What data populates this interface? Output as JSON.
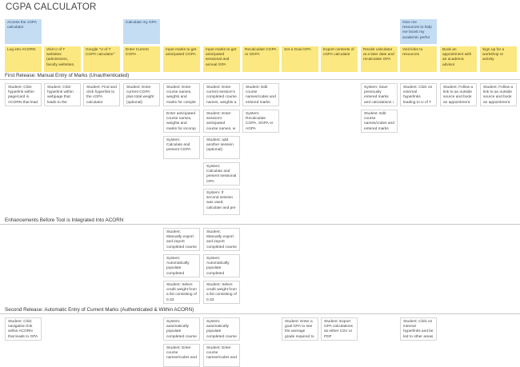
{
  "title": "CGPA CALCULATOR",
  "goals": {
    "access": "Access the cGPA calculator",
    "calculate": "Calculate my GPA",
    "resources": "Give me resources to help me boost my academic perfor"
  },
  "activities": [
    "Log into ACORN",
    "Visit U of T websites (admissions, faculty websites,",
    "Google \"U of T CGPA calculator\"",
    "Enter Current CGPA",
    "Input marks to get anticipated CGPA",
    "Input marks to get anticipated sessional and annual GPA",
    "Recalculate CGPA or SGPA",
    "Set a Goal GPA",
    "Export contents of cGPA calculator",
    "Revisit calculator at a later date and recalculate GPA",
    "Visit links to resources",
    "Book an appointment with an academic advisor",
    "Sign up for a workshop or activity"
  ],
  "sections": {
    "first": "First Release: Manual Entry of Marks (Unauthenticated)",
    "enhancements": "Enhancements Before Tool is Integrated Into ACORN",
    "second": "Second Release: Automatic Entry of Current Marks (Authenticated & Within ACORN)"
  },
  "release1": {
    "c0": [
      "Student: Click hyperlink within page/card in ACORN that lead"
    ],
    "c1": [
      "Student: Click hyperlink within webpage that leads to the cGPA"
    ],
    "c2": [
      "Student: Find and click hyperlink to the cGPA calculator"
    ],
    "c3": [
      "Student: Enter current CGPA plus total weight (optional)"
    ],
    "c4": [
      "Student: Enter course names, weights and marks for comple",
      "Enter anticipated course names, weights and marks for incomp",
      "System: Calculate and present CGPA"
    ],
    "c5": [
      "Student: Enter current session's completed course names, weights a",
      "Student: Enter session's anticipated course names, w",
      "Student: add another session (optional)",
      "System: Calculate and present sessional GPA",
      "System: If second session was used, calculate and pre"
    ],
    "c6": [
      "Student: Edit course names/codes and entered marks",
      "System: Recalculate CGPA, SGPA or AGPA"
    ],
    "c8": [
      "System: Save previously entered marks and calculations i",
      "Student: Edit course names/codes and entered marks"
    ],
    "c9": [
      "Student: Click on external hyperlinks leading to U of T"
    ],
    "c10": [
      "Student: Follow a link to an outside source and book an appointment"
    ],
    "c11": [
      "Student: Follow a link to an outside source and book an appointment"
    ]
  },
  "enhance": {
    "c4": [
      "Student: Manually export and import completed course",
      "System: Automatically populate completed grades",
      "Student: Select credit weight from a list consisting of 0.33"
    ],
    "c5": [
      "Student: Manually export and import completed course",
      "System: Automatically populate completed grades",
      "Student: Select credit weight from a list consisting of 0.33"
    ]
  },
  "release2": {
    "c0": [
      "Student: Click navigation link within ACORN that leads to GPA"
    ],
    "c4": [
      "System: automatically populate completed course",
      "Student: Enter course names/codes and"
    ],
    "c5": [
      "System: automatically populate completed course",
      "Student: Enter course names/codes and"
    ],
    "c7": [
      "Student: Enter a goal GPA to see the average grade required to"
    ],
    "c8": [
      "Student: Export GPA calculations as either CSV or PDF"
    ],
    "c10": [
      "Student: Click on internal hyperlinks and be led to other areas"
    ]
  }
}
